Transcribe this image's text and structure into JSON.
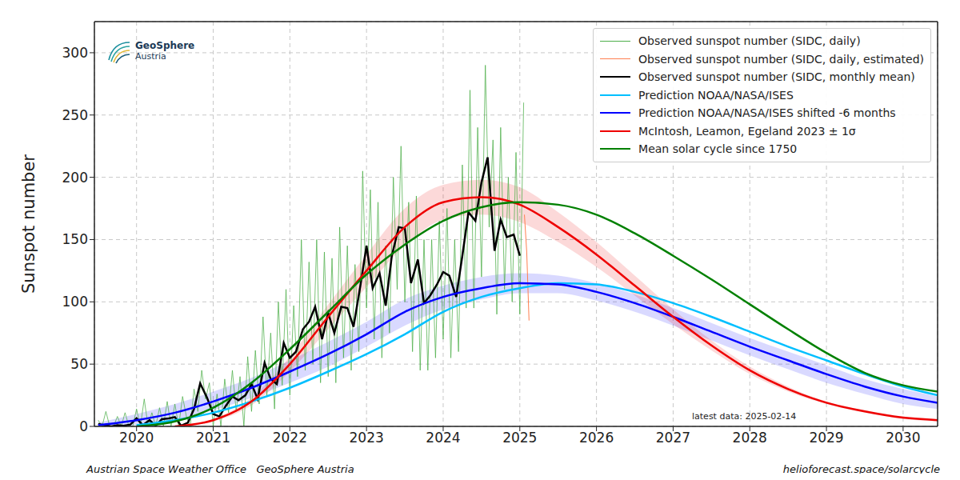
{
  "chart_data": {
    "type": "line",
    "ylabel": "Sunspot number",
    "xlim": [
      2019.45,
      2030.45
    ],
    "ylim": [
      0,
      325
    ],
    "xticks": [
      2020,
      2021,
      2022,
      2023,
      2024,
      2025,
      2026,
      2027,
      2028,
      2029,
      2030
    ],
    "yticks": [
      0,
      50,
      100,
      150,
      200,
      250,
      300
    ],
    "grid": true,
    "legend": "upper right",
    "logo_text": "GeoSphere",
    "logo_subtext": "Austria",
    "annotation": "latest data: 2025-02-14",
    "footer_left": "Austrian Space Weather Office   GeoSphere Austria",
    "footer_right": "helioforecast.space/solarcycle",
    "series": [
      {
        "name": "Observed sunspot number (SIDC, daily)",
        "color": "#4daf4a",
        "type": "line",
        "x": [
          2019.5,
          2019.55,
          2019.6,
          2019.65,
          2019.7,
          2019.75,
          2019.8,
          2019.85,
          2019.9,
          2019.95,
          2020.0,
          2020.05,
          2020.1,
          2020.15,
          2020.2,
          2020.25,
          2020.3,
          2020.35,
          2020.4,
          2020.45,
          2020.5,
          2020.55,
          2020.6,
          2020.65,
          2020.7,
          2020.75,
          2020.8,
          2020.85,
          2020.9,
          2020.95,
          2021.0,
          2021.05,
          2021.1,
          2021.15,
          2021.2,
          2021.25,
          2021.3,
          2021.35,
          2021.4,
          2021.45,
          2021.5,
          2021.55,
          2021.6,
          2021.65,
          2021.7,
          2021.75,
          2021.8,
          2021.85,
          2021.9,
          2021.95,
          2022.0,
          2022.05,
          2022.1,
          2022.15,
          2022.2,
          2022.25,
          2022.3,
          2022.35,
          2022.4,
          2022.45,
          2022.5,
          2022.55,
          2022.6,
          2022.65,
          2022.7,
          2022.75,
          2022.8,
          2022.85,
          2022.9,
          2022.95,
          2023.0,
          2023.05,
          2023.1,
          2023.15,
          2023.2,
          2023.25,
          2023.3,
          2023.35,
          2023.4,
          2023.45,
          2023.5,
          2023.55,
          2023.6,
          2023.65,
          2023.7,
          2023.75,
          2023.8,
          2023.85,
          2023.9,
          2023.95,
          2024.0,
          2024.05,
          2024.1,
          2024.15,
          2024.2,
          2024.25,
          2024.3,
          2024.35,
          2024.4,
          2024.45,
          2024.5,
          2024.55,
          2024.6,
          2024.65,
          2024.7,
          2024.75,
          2024.8,
          2024.85,
          2024.9,
          2024.95,
          2025.0,
          2025.05
        ],
        "values": [
          5,
          0,
          12,
          0,
          0,
          8,
          0,
          11,
          0,
          0,
          14,
          0,
          22,
          0,
          11,
          0,
          15,
          0,
          20,
          0,
          18,
          0,
          24,
          8,
          0,
          30,
          12,
          45,
          22,
          35,
          0,
          26,
          0,
          38,
          11,
          45,
          12,
          40,
          0,
          56,
          12,
          61,
          18,
          88,
          25,
          75,
          14,
          100,
          33,
          110,
          25,
          97,
          40,
          150,
          45,
          132,
          50,
          150,
          35,
          140,
          40,
          135,
          35,
          160,
          55,
          145,
          45,
          130,
          60,
          205,
          95,
          190,
          70,
          180,
          55,
          145,
          75,
          200,
          110,
          225,
          100,
          180,
          60,
          185,
          45,
          150,
          45,
          150,
          55,
          165,
          70,
          175,
          55,
          150,
          60,
          210,
          95,
          270,
          95,
          240,
          120,
          290,
          160,
          230,
          90,
          240,
          110,
          200,
          100,
          220,
          90,
          260
        ]
      },
      {
        "name": "Observed sunspot number (SIDC, daily, estimated)",
        "color": "#ff7f50",
        "type": "line",
        "x": [
          2025.06,
          2025.09,
          2025.12
        ],
        "values": [
          170,
          140,
          85
        ]
      },
      {
        "name": "Observed sunspot number (SIDC, monthly mean)",
        "color": "#000000",
        "type": "line",
        "x": [
          2019.5,
          2019.58,
          2019.67,
          2019.75,
          2019.83,
          2019.92,
          2020.0,
          2020.08,
          2020.17,
          2020.25,
          2020.33,
          2020.42,
          2020.5,
          2020.58,
          2020.67,
          2020.75,
          2020.83,
          2020.92,
          2021.0,
          2021.08,
          2021.17,
          2021.25,
          2021.33,
          2021.42,
          2021.5,
          2021.58,
          2021.67,
          2021.75,
          2021.83,
          2021.92,
          2022.0,
          2022.08,
          2022.17,
          2022.25,
          2022.33,
          2022.42,
          2022.5,
          2022.58,
          2022.67,
          2022.75,
          2022.83,
          2022.92,
          2023.0,
          2023.08,
          2023.17,
          2023.25,
          2023.33,
          2023.42,
          2023.5,
          2023.58,
          2023.67,
          2023.75,
          2023.83,
          2023.92,
          2024.0,
          2024.08,
          2024.17,
          2024.25,
          2024.33,
          2024.42,
          2024.5,
          2024.58,
          2024.67,
          2024.75,
          2024.83,
          2024.92,
          2025.0
        ],
        "values": [
          2,
          1,
          0,
          1,
          0.5,
          1.5,
          6.5,
          1,
          5,
          0.5,
          5.8,
          6.4,
          7.5,
          0.6,
          3,
          14,
          34.5,
          23,
          10,
          8,
          17,
          24,
          21,
          25,
          34,
          22,
          51,
          38,
          34,
          67,
          55,
          60,
          78,
          84,
          96,
          70,
          91,
          75,
          96,
          95,
          80,
          113,
          145,
          111,
          123,
          97,
          137,
          160,
          159,
          115,
          134,
          99,
          105,
          114,
          124,
          121,
          104,
          137,
          172,
          165,
          196,
          216,
          141,
          166,
          152,
          154,
          137
        ]
      },
      {
        "name": "Prediction NOAA/NASA/ISES",
        "color": "#00bfff",
        "type": "line",
        "x": [
          2020,
          2020.5,
          2021,
          2021.5,
          2022,
          2022.5,
          2023,
          2023.5,
          2024,
          2024.5,
          2025,
          2025.5,
          2026,
          2026.5,
          2027,
          2027.5,
          2028,
          2028.5,
          2029,
          2029.5,
          2030,
          2030.45
        ],
        "values": [
          1,
          5,
          11,
          20,
          31,
          44,
          58,
          74,
          92,
          104,
          111,
          115,
          114,
          108,
          99,
          88,
          76,
          64,
          53,
          42,
          32,
          25
        ]
      },
      {
        "name": "Prediction NOAA/NASA/ISES shifted -6 months",
        "color": "#0000ff",
        "type": "line",
        "x": [
          2019.5,
          2020,
          2020.5,
          2021,
          2021.5,
          2022,
          2022.5,
          2023,
          2023.5,
          2024,
          2024.5,
          2025,
          2025.5,
          2026,
          2026.5,
          2027,
          2027.5,
          2028,
          2028.5,
          2029,
          2029.5,
          2030,
          2030.45
        ],
        "values": [
          1,
          5,
          11,
          20,
          31,
          44,
          58,
          74,
          92,
          104,
          111,
          115,
          114,
          108,
          99,
          88,
          76,
          64,
          53,
          42,
          32,
          24,
          19
        ],
        "lower": [
          0,
          1,
          5,
          13,
          23,
          35,
          48,
          64,
          81,
          94,
          102,
          107,
          107,
          101,
          92,
          81,
          69,
          57,
          46,
          35,
          26,
          18,
          14
        ],
        "upper": [
          3,
          10,
          18,
          28,
          39,
          53,
          68,
          84,
          102,
          113,
          120,
          123,
          121,
          115,
          106,
          95,
          83,
          71,
          60,
          49,
          38,
          30,
          24
        ]
      },
      {
        "name": "McIntosh, Leamon, Egeland 2023 ± 1σ",
        "color": "#ee0000",
        "type": "line",
        "x": [
          2020.5,
          2021,
          2021.5,
          2022,
          2022.5,
          2023,
          2023.5,
          2024,
          2024.5,
          2025,
          2025.5,
          2026,
          2026.5,
          2027,
          2027.5,
          2028,
          2028.5,
          2029,
          2029.5,
          2030,
          2030.45
        ],
        "values": [
          0,
          5,
          20,
          50,
          88,
          125,
          160,
          180,
          184,
          178,
          160,
          138,
          113,
          88,
          65,
          45,
          30,
          19,
          12,
          7,
          5
        ],
        "lower": [
          0,
          4,
          17,
          44,
          78,
          112,
          145,
          166,
          170,
          164,
          148,
          128,
          105,
          82,
          61,
          42,
          28,
          18,
          11,
          6,
          4
        ],
        "upper": [
          0,
          6,
          23,
          56,
          98,
          138,
          175,
          194,
          198,
          192,
          172,
          148,
          121,
          94,
          69,
          48,
          32,
          20,
          13,
          8,
          6
        ]
      },
      {
        "name": "Mean solar cycle since 1750",
        "color": "#008000",
        "type": "line",
        "x": [
          2020,
          2020.5,
          2021,
          2021.5,
          2022,
          2022.5,
          2023,
          2023.5,
          2024,
          2024.5,
          2025,
          2025.5,
          2026,
          2026.5,
          2027,
          2027.5,
          2028,
          2028.5,
          2029,
          2029.5,
          2030,
          2030.45
        ],
        "values": [
          0,
          4,
          15,
          35,
          62,
          92,
          122,
          146,
          165,
          176,
          180,
          178,
          170,
          155,
          137,
          118,
          98,
          78,
          59,
          43,
          33,
          28
        ]
      }
    ]
  }
}
